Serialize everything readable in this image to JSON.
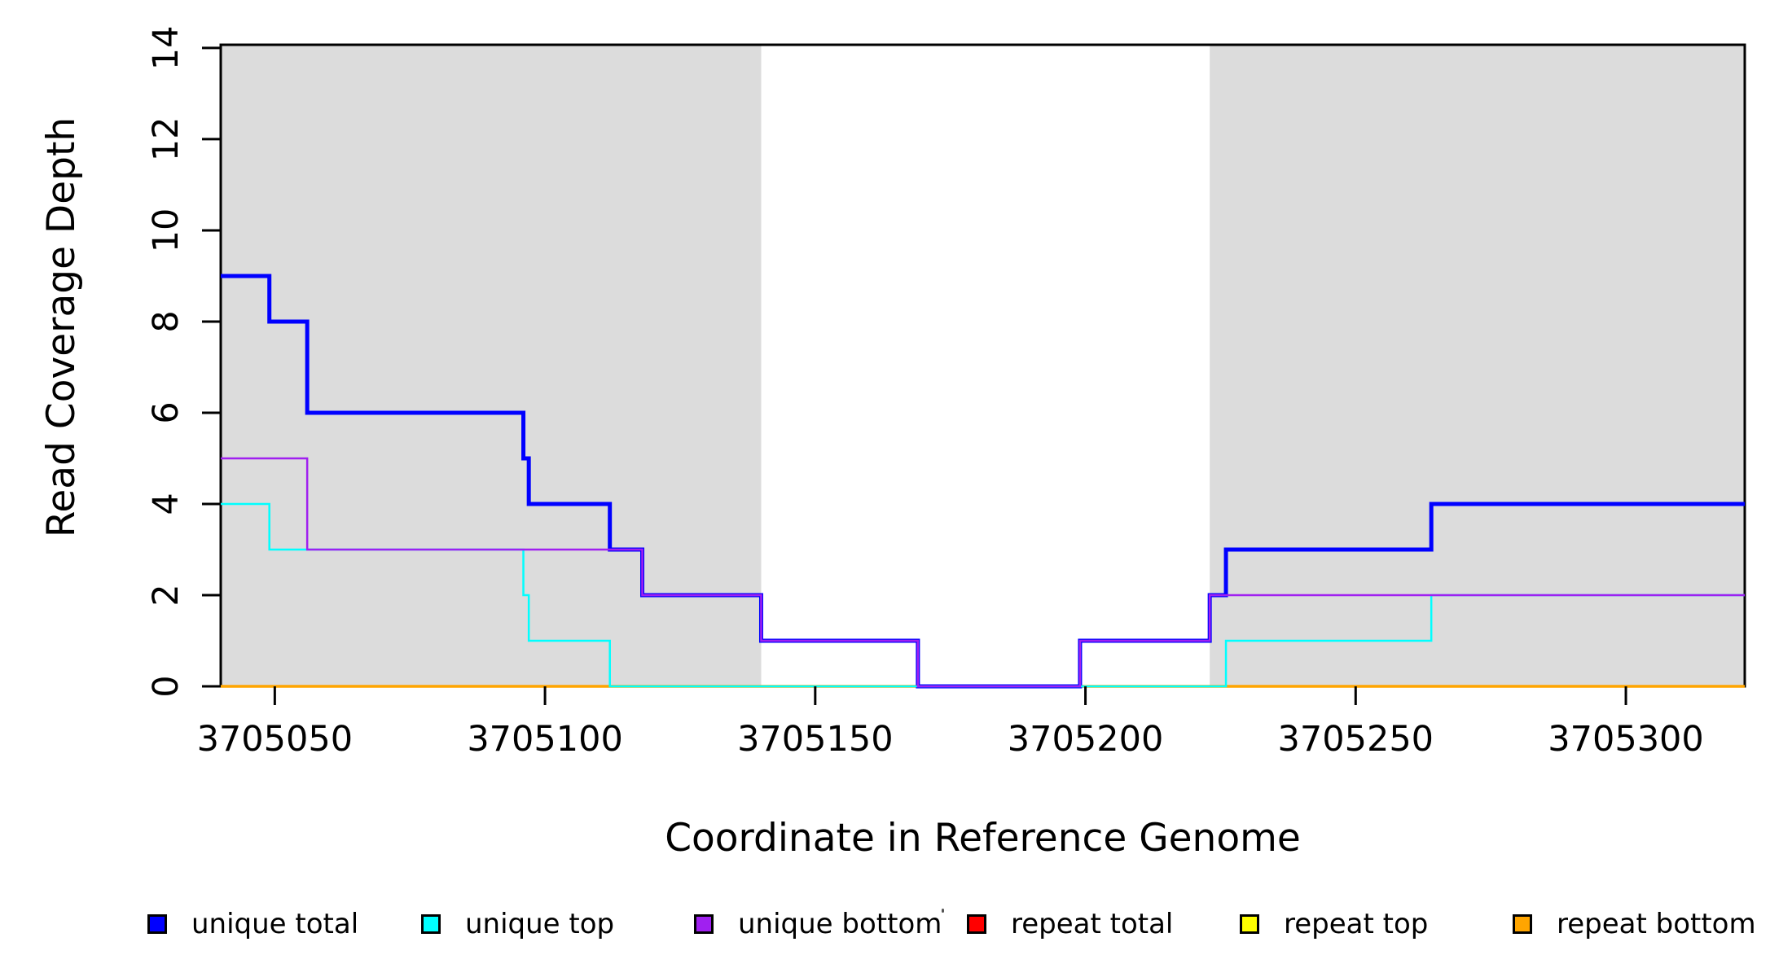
{
  "figure": {
    "background": "#FFFFFF",
    "frame_color": "#000000",
    "xlabel": "Coordinate in Reference Genome",
    "ylabel": "Read Coverage Depth"
  },
  "chart_data": {
    "type": "line",
    "subtype": "step-post",
    "title": "",
    "xlabel": "Coordinate in Reference Genome",
    "ylabel": "Read Coverage Depth",
    "x_range": [
      3705040,
      3705322
    ],
    "y_range": [
      0,
      14.07
    ],
    "x_ticks": [
      3705050,
      3705100,
      3705150,
      3705200,
      3705250,
      3705300
    ],
    "y_ticks": [
      0,
      2,
      4,
      6,
      8,
      10,
      12,
      14
    ],
    "grid": false,
    "legend_position": "bottom",
    "shaded_regions": [
      {
        "name": "repeat-region-left",
        "x0": 3705040,
        "x1": 3705140,
        "color": "#DCDCDC"
      },
      {
        "name": "repeat-region-right",
        "x0": 3705223,
        "x1": 3705322,
        "color": "#DCDCDC"
      }
    ],
    "series": [
      {
        "name": "unique total",
        "color": "#0000FF",
        "width": 5,
        "points": [
          [
            3705040,
            9
          ],
          [
            3705049,
            8
          ],
          [
            3705056,
            6
          ],
          [
            3705096,
            5
          ],
          [
            3705097,
            4
          ],
          [
            3705112,
            3
          ],
          [
            3705118,
            2
          ],
          [
            3705140,
            1
          ],
          [
            3705169,
            0
          ],
          [
            3705199,
            1
          ],
          [
            3705223,
            2
          ],
          [
            3705226,
            3
          ],
          [
            3705264,
            4
          ],
          [
            3705322,
            4
          ]
        ]
      },
      {
        "name": "unique top",
        "color": "#00FFFF",
        "width": 2.5,
        "points": [
          [
            3705040,
            4
          ],
          [
            3705049,
            3
          ],
          [
            3705096,
            2
          ],
          [
            3705097,
            1
          ],
          [
            3705112,
            0
          ],
          [
            3705226,
            1
          ],
          [
            3705264,
            2
          ],
          [
            3705322,
            2
          ]
        ]
      },
      {
        "name": "unique bottom",
        "color": "#A020F0",
        "width": 2.5,
        "points": [
          [
            3705040,
            5
          ],
          [
            3705056,
            3
          ],
          [
            3705118,
            2
          ],
          [
            3705140,
            1
          ],
          [
            3705169,
            0
          ],
          [
            3705199,
            1
          ],
          [
            3705223,
            2
          ],
          [
            3705322,
            2
          ]
        ]
      },
      {
        "name": "repeat total",
        "color": "#FF0000",
        "width": 2,
        "points": [
          [
            3705040,
            0
          ],
          [
            3705322,
            0
          ]
        ]
      },
      {
        "name": "repeat top",
        "color": "#FFFF00",
        "width": 2,
        "points": [
          [
            3705040,
            0
          ],
          [
            3705322,
            0
          ]
        ]
      },
      {
        "name": "repeat bottom",
        "color": "#FFA500",
        "width": 3.5,
        "points": [
          [
            3705040,
            0
          ],
          [
            3705322,
            0
          ]
        ]
      }
    ],
    "draw_order": [
      "repeat total",
      "repeat top",
      "repeat bottom",
      "unique total",
      "unique top",
      "unique bottom"
    ],
    "legend": [
      {
        "label": "unique total",
        "color": "#0000FF"
      },
      {
        "label": "unique top",
        "color": "#00FFFF"
      },
      {
        "label": "unique bottom",
        "color": "#A020F0"
      },
      {
        "label": "repeat total",
        "color": "#FF0000"
      },
      {
        "label": "repeat top",
        "color": "#FFFF00"
      },
      {
        "label": "repeat bottom",
        "color": "#FFA500"
      }
    ]
  }
}
